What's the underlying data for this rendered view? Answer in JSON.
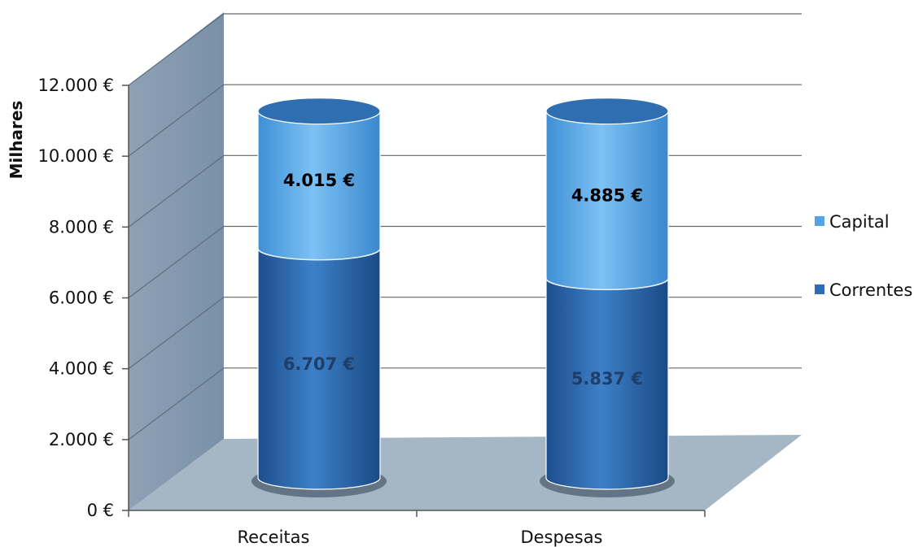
{
  "chart_data": {
    "type": "bar",
    "stacked": true,
    "style": "3d-cylinder",
    "categories": [
      "Receitas",
      "Despesas"
    ],
    "series": [
      {
        "name": "Correntes",
        "values": [
          6707,
          5837
        ],
        "labels": [
          "6.707 €",
          "5.837 €"
        ],
        "color": "#2E6DB4"
      },
      {
        "name": "Capital",
        "values": [
          4015,
          4885
        ],
        "labels": [
          "4.015 €",
          "4.885 €"
        ],
        "color": "#4FA3E6"
      }
    ],
    "ylabel": "Milhares",
    "xlabel": "",
    "title": "",
    "ylim": [
      0,
      12000
    ],
    "yticks": [
      0,
      2000,
      4000,
      6000,
      8000,
      10000,
      12000
    ],
    "ytick_labels": [
      "0 €",
      "2.000 €",
      "4.000 €",
      "6.000 €",
      "8.000 €",
      "10.000 €",
      "12.000 €"
    ],
    "grid": true,
    "legend_position": "right",
    "colors": {
      "wall": "#7F96AC",
      "floor": "#A3B4C3",
      "gridline": "#666666",
      "top_cap": "#2F6FB1",
      "correntes_label": "#1F3F6A",
      "capital_label": "#000000"
    }
  }
}
